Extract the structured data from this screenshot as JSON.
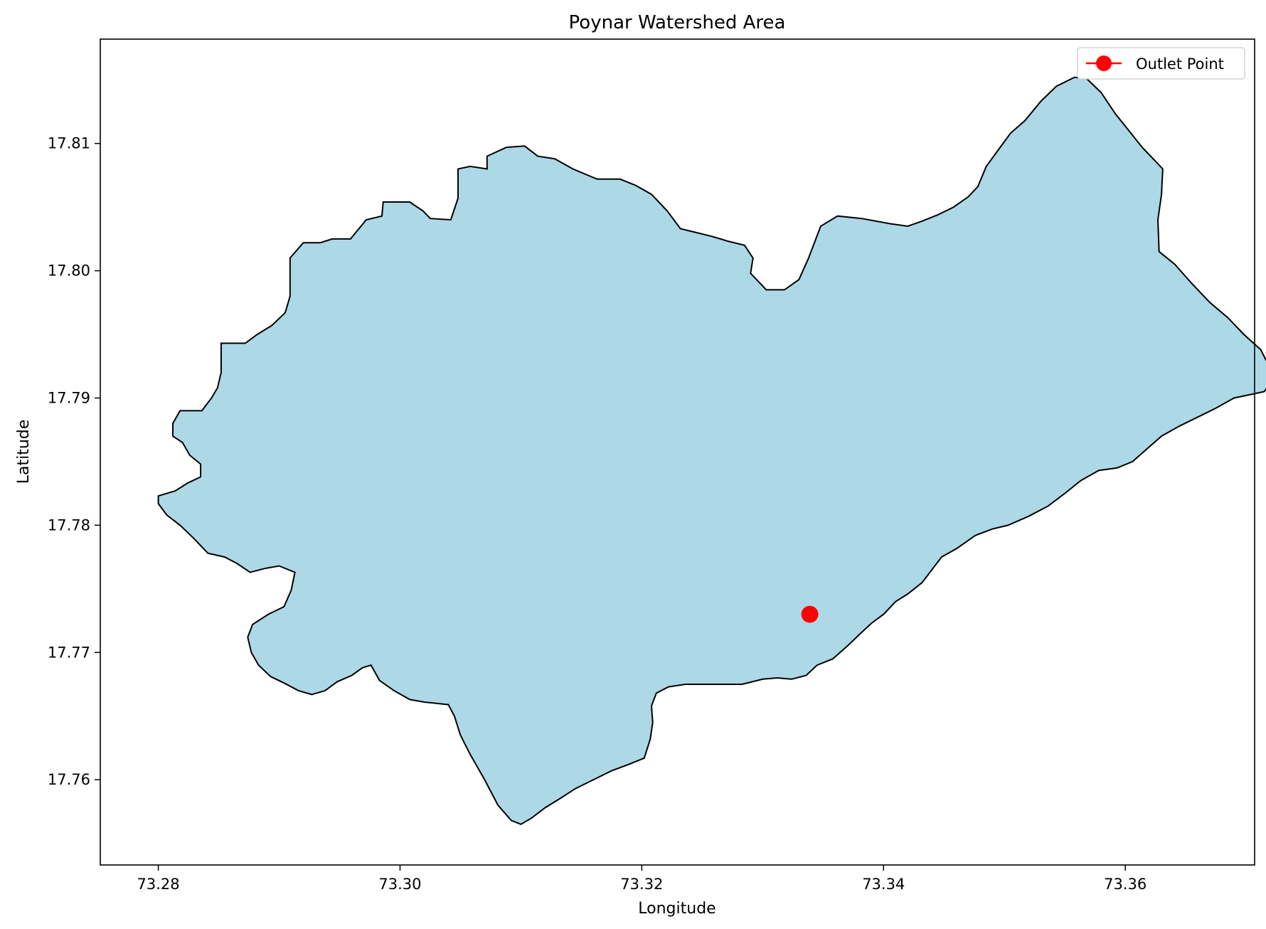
{
  "chart_data": {
    "type": "map",
    "title": "Poynar Watershed Area",
    "xlabel": "Longitude",
    "ylabel": "Latitude",
    "xlim": [
      73.2752,
      73.3707
    ],
    "ylim": [
      17.7533,
      17.8182
    ],
    "xticks": [
      {
        "value": 73.28,
        "label": "73.28"
      },
      {
        "value": 73.3,
        "label": "73.30"
      },
      {
        "value": 73.32,
        "label": "73.32"
      },
      {
        "value": 73.34,
        "label": "73.34"
      },
      {
        "value": 73.36,
        "label": "73.36"
      }
    ],
    "yticks": [
      {
        "value": 17.76,
        "label": "17.76"
      },
      {
        "value": 17.77,
        "label": "17.77"
      },
      {
        "value": 17.78,
        "label": "17.78"
      },
      {
        "value": 17.79,
        "label": "17.79"
      },
      {
        "value": 17.8,
        "label": "17.80"
      },
      {
        "value": 17.81,
        "label": "17.81"
      }
    ],
    "grid": false,
    "legend_position": "upper-right",
    "legend": [
      {
        "label": "Outlet Point",
        "marker": "circle",
        "color": "#ff0000"
      }
    ],
    "outlet_point": {
      "label": "Outlet Point",
      "lon": 73.3339,
      "lat": 17.773,
      "color": "#ff0000"
    },
    "watershed": {
      "fill": "#add8e6",
      "stroke": "#000000",
      "boundary": [
        [
          73.28,
          17.7823
        ],
        [
          73.2814,
          17.7827
        ],
        [
          73.2824,
          17.7833
        ],
        [
          73.2835,
          17.7838
        ],
        [
          73.2835,
          17.7848
        ],
        [
          73.2826,
          17.7855
        ],
        [
          73.282,
          17.7865
        ],
        [
          73.2812,
          17.787
        ],
        [
          73.2812,
          17.788
        ],
        [
          73.2818,
          17.789
        ],
        [
          73.2836,
          17.789
        ],
        [
          73.2844,
          17.79
        ],
        [
          73.2849,
          17.7908
        ],
        [
          73.2852,
          17.792
        ],
        [
          73.2852,
          17.7943
        ],
        [
          73.2872,
          17.7943
        ],
        [
          73.2882,
          17.795
        ],
        [
          73.2894,
          17.7957
        ],
        [
          73.2905,
          17.7967
        ],
        [
          73.2909,
          17.798
        ],
        [
          73.2909,
          17.801
        ],
        [
          73.292,
          17.8022
        ],
        [
          73.2934,
          17.8022
        ],
        [
          73.2944,
          17.8025
        ],
        [
          73.2959,
          17.8025
        ],
        [
          73.2972,
          17.804
        ],
        [
          73.2985,
          17.8043
        ],
        [
          73.2986,
          17.8054
        ],
        [
          73.3008,
          17.8054
        ],
        [
          73.3019,
          17.8047
        ],
        [
          73.3025,
          17.8041
        ],
        [
          73.3042,
          17.804
        ],
        [
          73.3048,
          17.8057
        ],
        [
          73.3048,
          17.808
        ],
        [
          73.3058,
          17.8082
        ],
        [
          73.3072,
          17.808
        ],
        [
          73.3072,
          17.809
        ],
        [
          73.3088,
          17.8097
        ],
        [
          73.3103,
          17.8098
        ],
        [
          73.3114,
          17.809
        ],
        [
          73.3128,
          17.8088
        ],
        [
          73.3143,
          17.808
        ],
        [
          73.3163,
          17.8072
        ],
        [
          73.3182,
          17.8072
        ],
        [
          73.3195,
          17.8067
        ],
        [
          73.3208,
          17.806
        ],
        [
          73.3221,
          17.8047
        ],
        [
          73.3232,
          17.8033
        ],
        [
          73.3245,
          17.803
        ],
        [
          73.3258,
          17.8027
        ],
        [
          73.3272,
          17.8023
        ],
        [
          73.3285,
          17.802
        ],
        [
          73.3292,
          17.801
        ],
        [
          73.329,
          17.7998
        ],
        [
          73.3303,
          17.7985
        ],
        [
          73.3318,
          17.7985
        ],
        [
          73.333,
          17.7993
        ],
        [
          73.3338,
          17.801
        ],
        [
          73.3348,
          17.8035
        ],
        [
          73.3362,
          17.8043
        ],
        [
          73.3382,
          17.8041
        ],
        [
          73.3405,
          17.8037
        ],
        [
          73.342,
          17.8035
        ],
        [
          73.3432,
          17.8039
        ],
        [
          73.3445,
          17.8044
        ],
        [
          73.3458,
          17.805
        ],
        [
          73.347,
          17.8058
        ],
        [
          73.3478,
          17.8066
        ],
        [
          73.3485,
          17.8082
        ],
        [
          73.3495,
          17.8095
        ],
        [
          73.3505,
          17.8108
        ],
        [
          73.3517,
          17.8118
        ],
        [
          73.353,
          17.8133
        ],
        [
          73.3543,
          17.8145
        ],
        [
          73.3558,
          17.8152
        ],
        [
          73.3568,
          17.8151
        ],
        [
          73.358,
          17.814
        ],
        [
          73.3592,
          17.8123
        ],
        [
          73.3603,
          17.811
        ],
        [
          73.3614,
          17.8097
        ],
        [
          73.3625,
          17.8086
        ],
        [
          73.3631,
          17.808
        ],
        [
          73.363,
          17.806
        ],
        [
          73.3627,
          17.804
        ],
        [
          73.3628,
          17.8015
        ],
        [
          73.3641,
          17.8005
        ],
        [
          73.3655,
          17.799
        ],
        [
          73.367,
          17.7975
        ],
        [
          73.3685,
          17.7963
        ],
        [
          73.3698,
          17.795
        ],
        [
          73.3712,
          17.7938
        ],
        [
          73.3719,
          17.7925
        ],
        [
          73.3721,
          17.7913
        ],
        [
          73.3715,
          17.7905
        ],
        [
          73.3705,
          17.7903
        ],
        [
          73.369,
          17.79
        ],
        [
          73.3675,
          17.7892
        ],
        [
          73.366,
          17.7885
        ],
        [
          73.3645,
          17.7878
        ],
        [
          73.363,
          17.787
        ],
        [
          73.3618,
          17.786
        ],
        [
          73.3606,
          17.785
        ],
        [
          73.3593,
          17.7845
        ],
        [
          73.3578,
          17.7843
        ],
        [
          73.3563,
          17.7835
        ],
        [
          73.355,
          17.7825
        ],
        [
          73.3536,
          17.7815
        ],
        [
          73.352,
          17.7807
        ],
        [
          73.3503,
          17.78
        ],
        [
          73.349,
          17.7797
        ],
        [
          73.3476,
          17.7792
        ],
        [
          73.3461,
          17.7782
        ],
        [
          73.3448,
          17.7775
        ],
        [
          73.344,
          17.7765
        ],
        [
          73.3432,
          17.7755
        ],
        [
          73.342,
          17.7746
        ],
        [
          73.341,
          17.774
        ],
        [
          73.34,
          17.773
        ],
        [
          73.339,
          17.7723
        ],
        [
          73.3381,
          17.7715
        ],
        [
          73.337,
          17.7705
        ],
        [
          73.3358,
          17.7695
        ],
        [
          73.3345,
          17.769
        ],
        [
          73.3336,
          17.7682
        ],
        [
          73.3324,
          17.7679
        ],
        [
          73.3312,
          17.768
        ],
        [
          73.33,
          17.7679
        ],
        [
          73.3283,
          17.7675
        ],
        [
          73.3268,
          17.7675
        ],
        [
          73.3252,
          17.7675
        ],
        [
          73.3236,
          17.7675
        ],
        [
          73.3222,
          17.7673
        ],
        [
          73.3212,
          17.7668
        ],
        [
          73.3208,
          17.7658
        ],
        [
          73.3209,
          17.7645
        ],
        [
          73.3207,
          17.7632
        ],
        [
          73.3202,
          17.7617
        ],
        [
          73.3189,
          17.7612
        ],
        [
          73.3175,
          17.7607
        ],
        [
          73.316,
          17.76
        ],
        [
          73.3145,
          17.7593
        ],
        [
          73.3132,
          17.7585
        ],
        [
          73.312,
          17.7578
        ],
        [
          73.3109,
          17.757
        ],
        [
          73.31,
          17.7565
        ],
        [
          73.3092,
          17.7568
        ],
        [
          73.3081,
          17.758
        ],
        [
          73.307,
          17.76
        ],
        [
          73.3058,
          17.762
        ],
        [
          73.305,
          17.7635
        ],
        [
          73.3045,
          17.765
        ],
        [
          73.304,
          17.7659
        ],
        [
          73.303,
          17.766
        ],
        [
          73.302,
          17.7661
        ],
        [
          73.3008,
          17.7663
        ],
        [
          73.2995,
          17.767
        ],
        [
          73.2983,
          17.7678
        ],
        [
          73.2976,
          17.769
        ],
        [
          73.2969,
          17.7688
        ],
        [
          73.296,
          17.7682
        ],
        [
          73.2948,
          17.7677
        ],
        [
          73.2938,
          17.767
        ],
        [
          73.2927,
          17.7667
        ],
        [
          73.2916,
          17.767
        ],
        [
          73.2904,
          17.7676
        ],
        [
          73.2893,
          17.7681
        ],
        [
          73.2883,
          17.769
        ],
        [
          73.2877,
          17.77
        ],
        [
          73.2874,
          17.7712
        ],
        [
          73.2878,
          17.7722
        ],
        [
          73.2891,
          17.773
        ],
        [
          73.2904,
          17.7736
        ],
        [
          73.291,
          17.7749
        ],
        [
          73.2913,
          17.7763
        ],
        [
          73.29,
          17.7768
        ],
        [
          73.2888,
          17.7766
        ],
        [
          73.2876,
          17.7763
        ],
        [
          73.2865,
          17.777
        ],
        [
          73.2855,
          17.7775
        ],
        [
          73.2841,
          17.7778
        ],
        [
          73.2829,
          17.779
        ],
        [
          73.2818,
          17.78
        ],
        [
          73.2807,
          17.7808
        ],
        [
          73.28,
          17.7817
        ]
      ]
    }
  }
}
